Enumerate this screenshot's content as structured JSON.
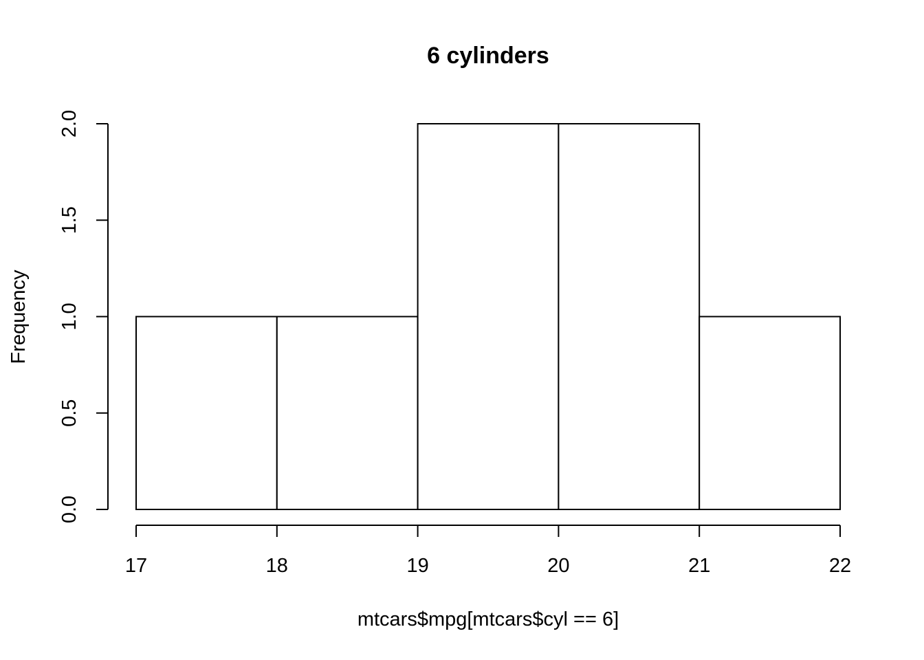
{
  "chart_data": {
    "type": "bar",
    "subtype": "histogram",
    "title": "6 cylinders",
    "xlabel": "mtcars$mpg[mtcars$cyl == 6]",
    "ylabel": "Frequency",
    "bins": [
      {
        "start": 17,
        "end": 18,
        "count": 1
      },
      {
        "start": 18,
        "end": 19,
        "count": 1
      },
      {
        "start": 19,
        "end": 20,
        "count": 2
      },
      {
        "start": 20,
        "end": 21,
        "count": 2
      },
      {
        "start": 21,
        "end": 22,
        "count": 1
      }
    ],
    "xlim": [
      17,
      22
    ],
    "ylim": [
      0,
      2
    ],
    "xticks": [
      "17",
      "18",
      "19",
      "20",
      "21",
      "22"
    ],
    "yticks": [
      "0.0",
      "0.5",
      "1.0",
      "1.5",
      "2.0"
    ],
    "grid": false,
    "colors": {
      "bar_fill": "#ffffff",
      "bar_stroke": "#000000"
    }
  }
}
